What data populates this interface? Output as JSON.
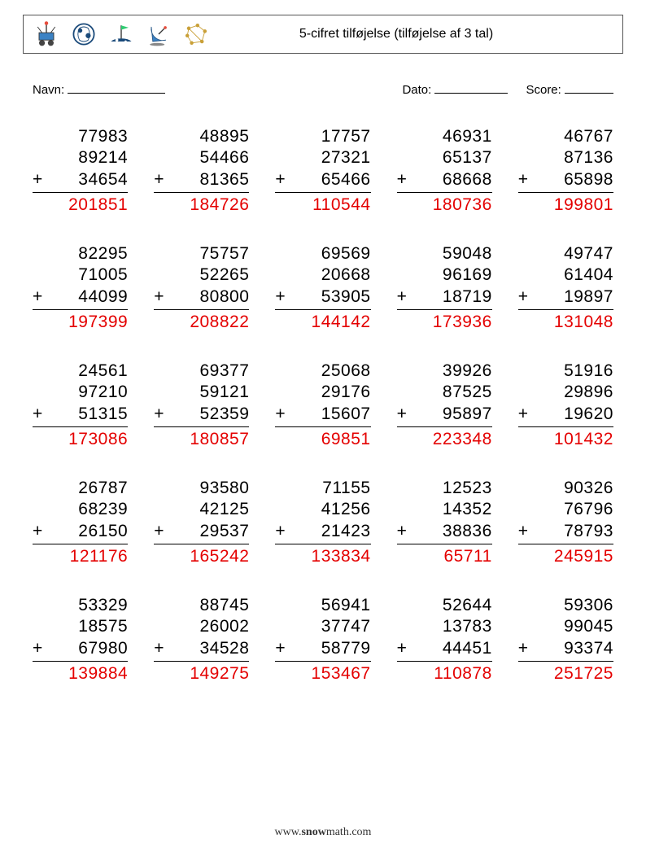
{
  "header": {
    "title": "5-cifret tilføjelse (tilføjelse af 3 tal)"
  },
  "meta": {
    "name_label": "Navn:",
    "date_label": "Dato:",
    "score_label": "Score:",
    "name_line_width": 120,
    "date_line_width": 90,
    "score_line_width": 60
  },
  "style": {
    "answer_color": "#e40000",
    "text_color": "#000000",
    "font_size_problem": 21,
    "grid_cols": 5,
    "grid_rows": 5
  },
  "footer": {
    "text_prefix": "www.",
    "text_bold": "snow",
    "text_suffix": "math.com"
  },
  "problems": [
    {
      "a": "77983",
      "b": "89214",
      "c": "34654",
      "ans": "201851"
    },
    {
      "a": "48895",
      "b": "54466",
      "c": "81365",
      "ans": "184726"
    },
    {
      "a": "17757",
      "b": "27321",
      "c": "65466",
      "ans": "110544"
    },
    {
      "a": "46931",
      "b": "65137",
      "c": "68668",
      "ans": "180736"
    },
    {
      "a": "46767",
      "b": "87136",
      "c": "65898",
      "ans": "199801"
    },
    {
      "a": "82295",
      "b": "71005",
      "c": "44099",
      "ans": "197399"
    },
    {
      "a": "75757",
      "b": "52265",
      "c": "80800",
      "ans": "208822"
    },
    {
      "a": "69569",
      "b": "20668",
      "c": "53905",
      "ans": "144142"
    },
    {
      "a": "59048",
      "b": "96169",
      "c": "18719",
      "ans": "173936"
    },
    {
      "a": "49747",
      "b": "61404",
      "c": "19897",
      "ans": "131048"
    },
    {
      "a": "24561",
      "b": "97210",
      "c": "51315",
      "ans": "173086"
    },
    {
      "a": "69377",
      "b": "59121",
      "c": "52359",
      "ans": "180857"
    },
    {
      "a": "25068",
      "b": "29176",
      "c": "15607",
      "ans": "69851"
    },
    {
      "a": "39926",
      "b": "87525",
      "c": "95897",
      "ans": "223348"
    },
    {
      "a": "51916",
      "b": "29896",
      "c": "19620",
      "ans": "101432"
    },
    {
      "a": "26787",
      "b": "68239",
      "c": "26150",
      "ans": "121176"
    },
    {
      "a": "93580",
      "b": "42125",
      "c": "29537",
      "ans": "165242"
    },
    {
      "a": "71155",
      "b": "41256",
      "c": "21423",
      "ans": "133834"
    },
    {
      "a": "12523",
      "b": "14352",
      "c": "38836",
      "ans": "65711"
    },
    {
      "a": "90326",
      "b": "76796",
      "c": "78793",
      "ans": "245915"
    },
    {
      "a": "53329",
      "b": "18575",
      "c": "67980",
      "ans": "139884"
    },
    {
      "a": "88745",
      "b": "26002",
      "c": "34528",
      "ans": "149275"
    },
    {
      "a": "56941",
      "b": "37747",
      "c": "58779",
      "ans": "153467"
    },
    {
      "a": "52644",
      "b": "13783",
      "c": "44451",
      "ans": "110878"
    },
    {
      "a": "59306",
      "b": "99045",
      "c": "93374",
      "ans": "251725"
    }
  ]
}
